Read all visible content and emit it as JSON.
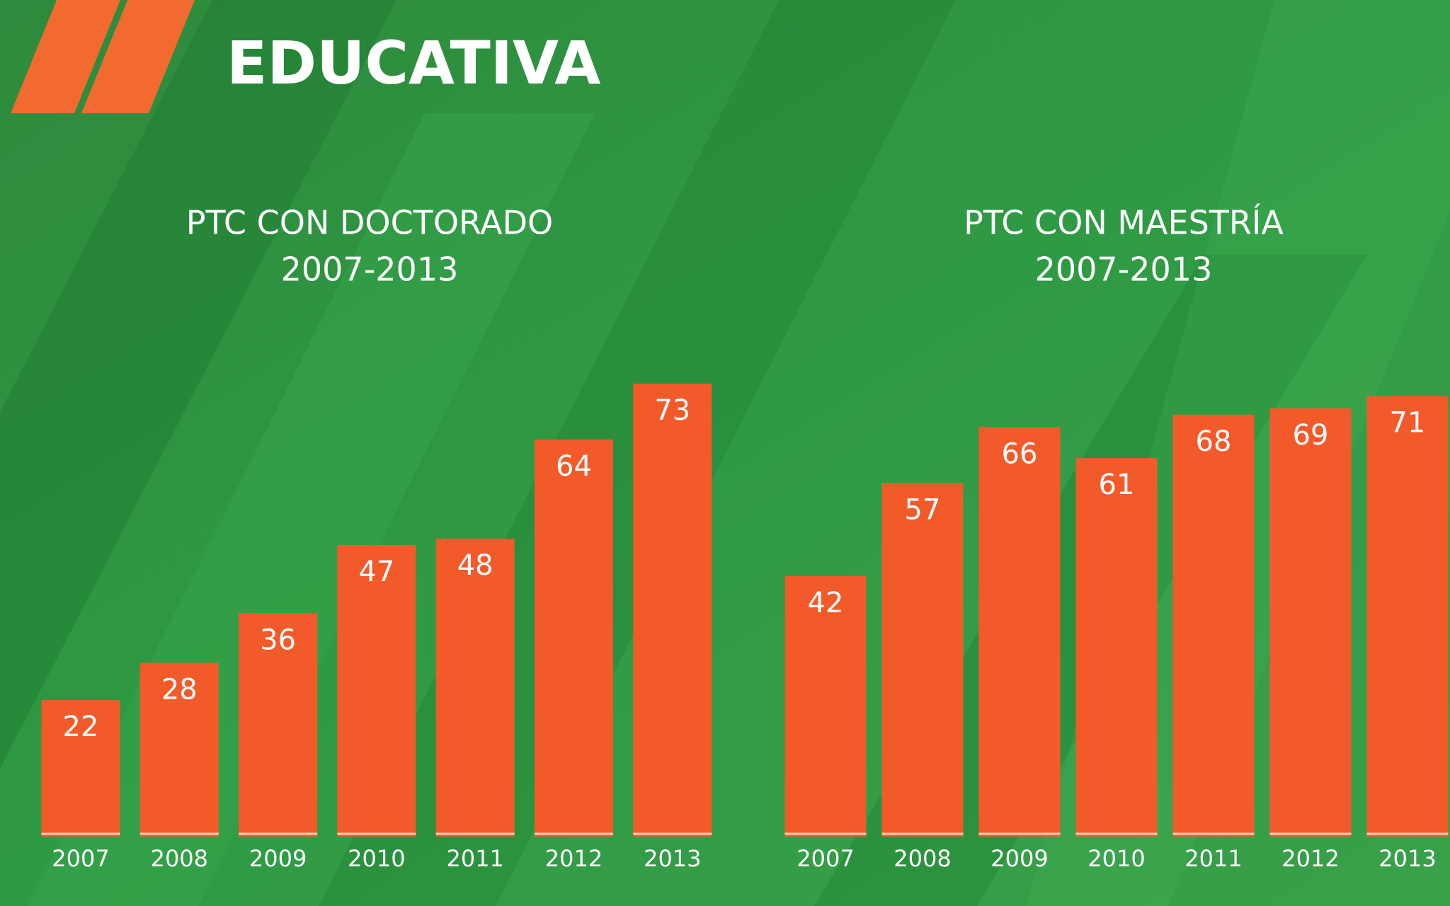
{
  "header": {
    "title": "EDUCATIVA"
  },
  "chart_data": [
    {
      "type": "bar",
      "title": "PTC CON DOCTORADO",
      "subtitle": "2007-2013",
      "categories": [
        "2007",
        "2008",
        "2009",
        "2010",
        "2011",
        "2012",
        "2013"
      ],
      "values": [
        22,
        28,
        36,
        47,
        48,
        64,
        73
      ],
      "color": "#f25a2a"
    },
    {
      "type": "bar",
      "title": "PTC CON MAESTRÍA",
      "subtitle": "2007-2013",
      "categories": [
        "2007",
        "2008",
        "2009",
        "2010",
        "2011",
        "2012",
        "2013"
      ],
      "values": [
        42,
        57,
        66,
        61,
        68,
        69,
        71
      ],
      "color": "#f25a2a"
    }
  ]
}
